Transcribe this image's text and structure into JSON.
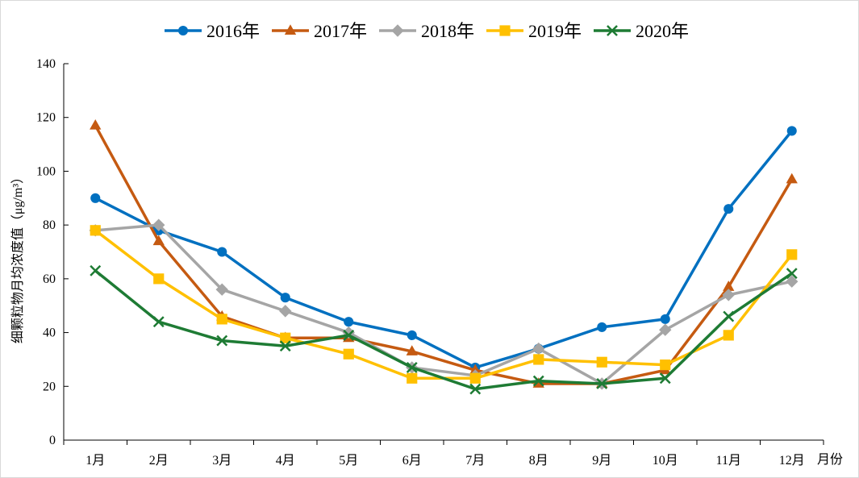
{
  "chart_data": {
    "type": "line",
    "title": "",
    "xlabel": "月份",
    "ylabel": "细颗粒物月均浓度值（μg/m³）",
    "categories": [
      "1月",
      "2月",
      "3月",
      "4月",
      "5月",
      "6月",
      "7月",
      "8月",
      "9月",
      "10月",
      "11月",
      "12月"
    ],
    "ylim": [
      0,
      140
    ],
    "yticks": [
      0,
      20,
      40,
      60,
      80,
      100,
      120,
      140
    ],
    "legend_position": "top-center",
    "grid": false,
    "series": [
      {
        "name": "2016年",
        "color": "#0070C0",
        "marker": "circle",
        "values": [
          90,
          78,
          70,
          53,
          44,
          39,
          27,
          34,
          42,
          45,
          86,
          115
        ]
      },
      {
        "name": "2017年",
        "color": "#C55A11",
        "marker": "triangle",
        "values": [
          117,
          74,
          46,
          38,
          38,
          33,
          26,
          21,
          21,
          26,
          57,
          97
        ]
      },
      {
        "name": "2018年",
        "color": "#A5A5A5",
        "marker": "diamond",
        "values": [
          78,
          80,
          56,
          48,
          40,
          27,
          24,
          34,
          21,
          41,
          54,
          59
        ]
      },
      {
        "name": "2019年",
        "color": "#FFC000",
        "marker": "square",
        "values": [
          78,
          60,
          45,
          38,
          32,
          23,
          23,
          30,
          29,
          28,
          39,
          69
        ]
      },
      {
        "name": "2020年",
        "color": "#1E7B34",
        "marker": "x",
        "values": [
          63,
          44,
          37,
          35,
          39,
          27,
          19,
          22,
          21,
          23,
          46,
          62
        ]
      }
    ]
  }
}
